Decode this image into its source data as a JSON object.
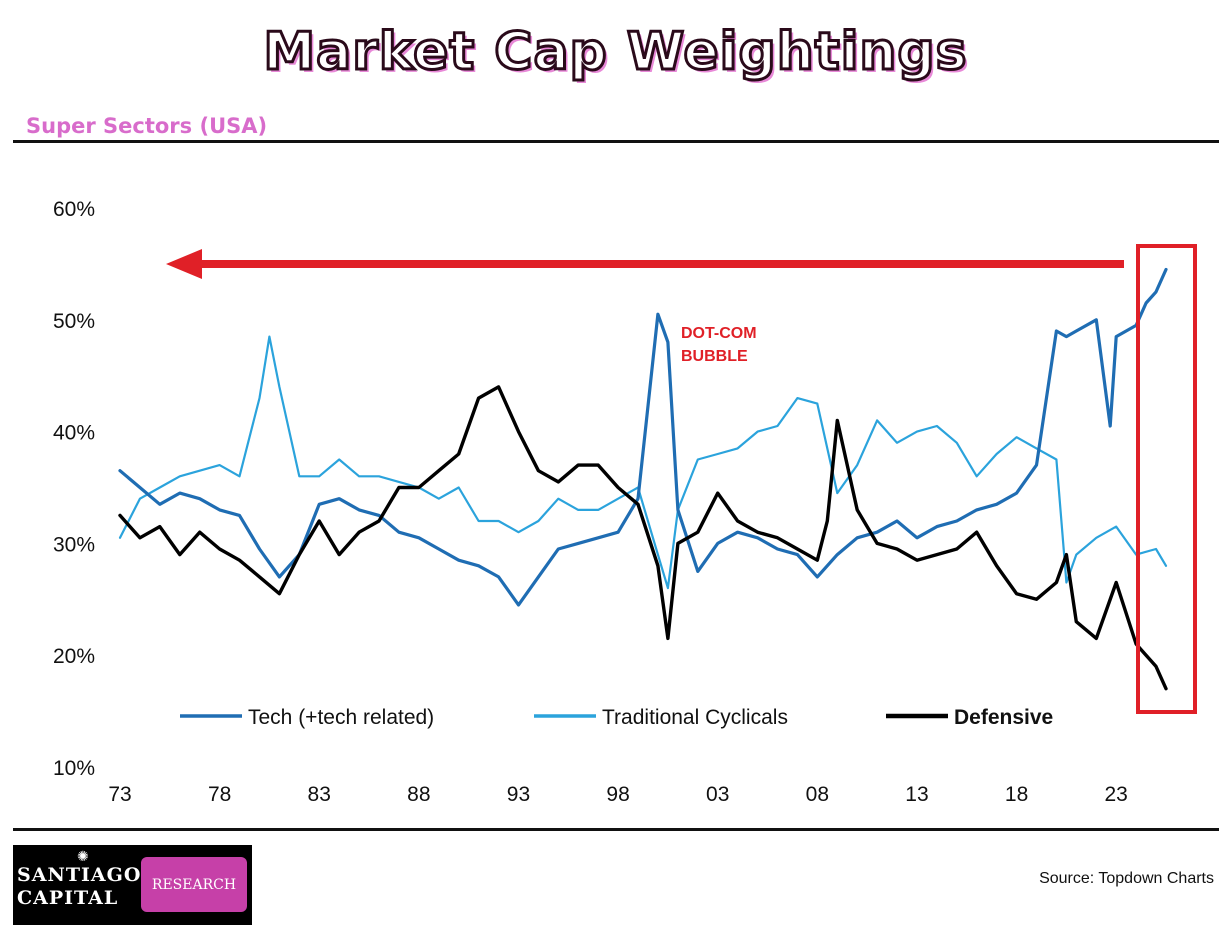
{
  "header": {
    "title": "Market Cap Weightings",
    "subtitle": "Super Sectors (USA)"
  },
  "footer": {
    "source": "Source: Topdown Charts",
    "logo_line1": "SANTIAGO",
    "logo_line2": "CAPITAL",
    "logo_badge": "RESEARCH"
  },
  "colors": {
    "tech": "#1f6db3",
    "cyclicals": "#2ba3dc",
    "defensive": "#000000",
    "highlight": "#e02027",
    "title_accent": "#d86ccb"
  },
  "chart_data": {
    "type": "line",
    "title": "Market Cap Weightings",
    "subtitle": "Super Sectors (USA)",
    "xlabel": "",
    "ylabel": "",
    "xlim": [
      1973,
      2025.5
    ],
    "ylim": [
      10,
      60
    ],
    "y_ticks": [
      "10%",
      "20%",
      "30%",
      "40%",
      "50%",
      "60%"
    ],
    "x_ticks": [
      "73",
      "78",
      "83",
      "88",
      "93",
      "98",
      "03",
      "08",
      "13",
      "18",
      "23"
    ],
    "legend_position": "bottom-center",
    "annotations": [
      "DOT-COM",
      "BUBBLE"
    ],
    "series": [
      {
        "name": "Tech (+tech related)",
        "color": "#1f6db3",
        "x": [
          1973,
          1974,
          1975,
          1976,
          1977,
          1978,
          1979,
          1980,
          1981,
          1982,
          1983,
          1984,
          1985,
          1986,
          1987,
          1988,
          1989,
          1990,
          1991,
          1992,
          1993,
          1994,
          1995,
          1996,
          1997,
          1998,
          1999,
          2000,
          2000.5,
          2001,
          2002,
          2003,
          2004,
          2005,
          2006,
          2007,
          2008,
          2009,
          2010,
          2011,
          2012,
          2013,
          2014,
          2015,
          2016,
          2017,
          2018,
          2019,
          2020,
          2020.5,
          2021,
          2022,
          2022.7,
          2023,
          2024,
          2024.5,
          2025,
          2025.5
        ],
        "values": [
          36.5,
          35,
          33.5,
          34.5,
          34,
          33,
          32.5,
          29.5,
          27,
          29,
          33.5,
          34,
          33,
          32.5,
          31,
          30.5,
          29.5,
          28.5,
          28,
          27,
          24.5,
          27,
          29.5,
          30,
          30.5,
          31,
          34,
          50.5,
          48,
          33,
          27.5,
          30,
          31,
          30.5,
          29.5,
          29,
          27,
          29,
          30.5,
          31,
          32,
          30.5,
          31.5,
          32,
          33,
          33.5,
          34.5,
          37,
          49,
          48.5,
          49,
          50,
          40.5,
          48.5,
          49.5,
          51.5,
          52.5,
          54.5
        ]
      },
      {
        "name": "Traditional Cyclicals",
        "color": "#2ba3dc",
        "x": [
          1973,
          1974,
          1975,
          1976,
          1977,
          1978,
          1979,
          1980,
          1980.5,
          1981,
          1982,
          1983,
          1984,
          1985,
          1986,
          1987,
          1988,
          1989,
          1990,
          1991,
          1992,
          1993,
          1994,
          1995,
          1996,
          1997,
          1998,
          1999,
          2000,
          2000.5,
          2001,
          2002,
          2003,
          2004,
          2005,
          2006,
          2007,
          2008,
          2009,
          2010,
          2011,
          2012,
          2013,
          2014,
          2015,
          2016,
          2017,
          2018,
          2019,
          2020,
          2020.5,
          2021,
          2022,
          2023,
          2024,
          2025,
          2025.5
        ],
        "values": [
          30.5,
          34,
          35,
          36,
          36.5,
          37,
          36,
          43,
          48.5,
          44,
          36,
          36,
          37.5,
          36,
          36,
          35.5,
          35,
          34,
          35,
          32,
          32,
          31,
          32,
          34,
          33,
          33,
          34,
          35,
          29,
          26,
          33,
          37.5,
          38,
          38.5,
          40,
          40.5,
          43,
          42.5,
          34.5,
          37,
          41,
          39,
          40,
          40.5,
          39,
          36,
          38,
          39.5,
          38.5,
          37.5,
          26.5,
          29,
          30.5,
          31.5,
          29,
          29.5,
          28
        ]
      },
      {
        "name": "Defensive",
        "color": "#000000",
        "x": [
          1973,
          1974,
          1975,
          1976,
          1977,
          1978,
          1979,
          1980,
          1981,
          1982,
          1983,
          1984,
          1985,
          1986,
          1987,
          1988,
          1989,
          1990,
          1991,
          1992,
          1993,
          1994,
          1995,
          1996,
          1997,
          1998,
          1999,
          2000,
          2000.5,
          2001,
          2002,
          2003,
          2004,
          2005,
          2006,
          2007,
          2008,
          2008.5,
          2009,
          2010,
          2011,
          2012,
          2013,
          2014,
          2015,
          2016,
          2017,
          2018,
          2019,
          2020,
          2020.5,
          2021,
          2022,
          2023,
          2024,
          2025,
          2025.5
        ],
        "values": [
          32.5,
          30.5,
          31.5,
          29,
          31,
          29.5,
          28.5,
          27,
          25.5,
          29,
          32,
          29,
          31,
          32,
          35,
          35,
          36.5,
          38,
          43,
          44,
          40,
          36.5,
          35.5,
          37,
          37,
          35,
          33.5,
          28,
          21.5,
          30,
          31,
          34.5,
          32,
          31,
          30.5,
          29.5,
          28.5,
          32,
          41,
          33,
          30,
          29.5,
          28.5,
          29,
          29.5,
          31,
          28,
          25.5,
          25,
          26.5,
          29,
          23,
          21.5,
          26.5,
          21,
          19,
          17
        ]
      }
    ]
  }
}
